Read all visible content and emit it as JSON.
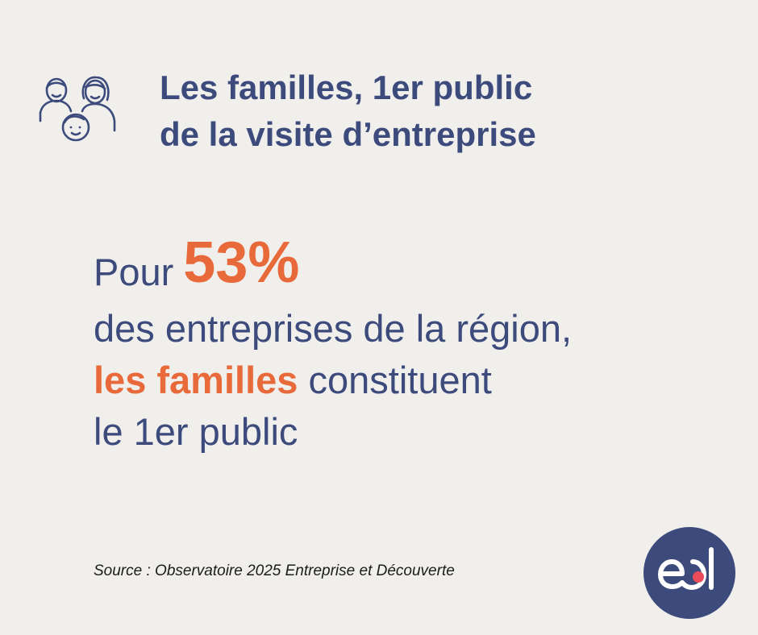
{
  "header": {
    "icon": "family-icon",
    "title_line_1": "Les familles, 1er public",
    "title_line_2": "de la visite d’entreprise"
  },
  "statement": {
    "prefix": "Pour",
    "percentage": "53%",
    "line_2": "des entreprises de la région,",
    "highlight": "les familles",
    "line_3_rest": " constituent",
    "line_4": "le 1er public"
  },
  "source": "Source : Observatoire 2025 Entreprise et Découverte",
  "logo": {
    "icon": "ed-logo-icon"
  },
  "colors": {
    "background": "#f0efec",
    "navy": "#3c4b7c",
    "orange": "#e86a3a",
    "logo_dot": "#ec4b5a"
  }
}
